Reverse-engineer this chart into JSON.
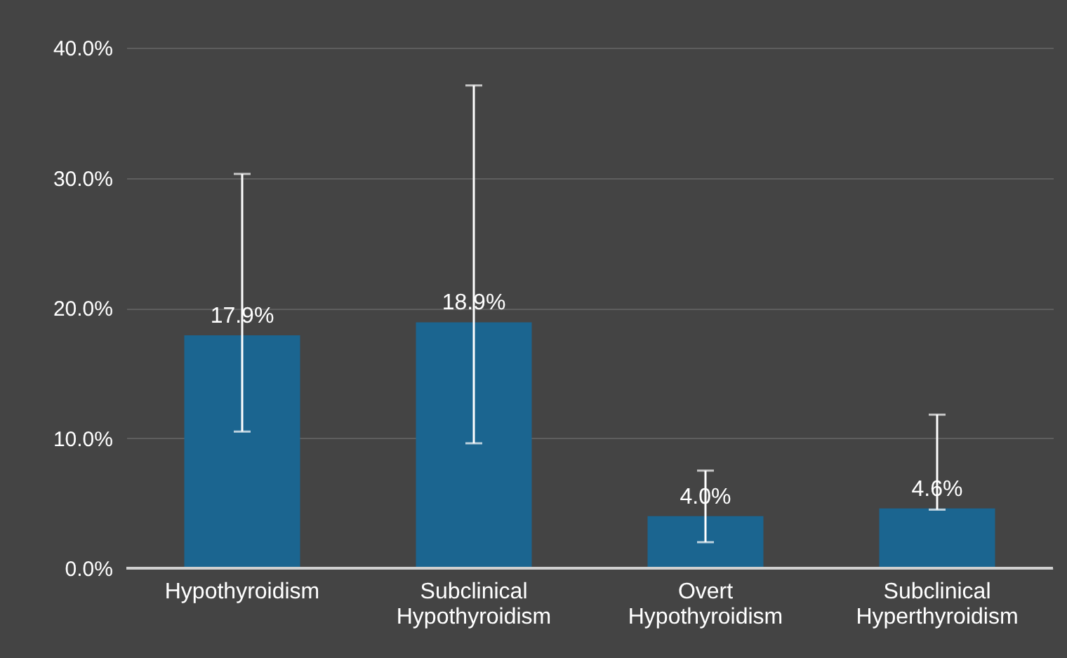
{
  "chart_data": {
    "type": "bar",
    "categories": [
      "Hypothyroidism",
      "Subclinical Hypothyroidism",
      "Overt Hypothyroidism",
      "Subclinical Hyperthyroidism"
    ],
    "values": [
      17.9,
      18.9,
      4.0,
      4.6
    ],
    "value_labels": [
      "17.9%",
      "18.9%",
      "4.0%",
      "4.6%"
    ],
    "errors": [
      [
        10.5,
        30.3
      ],
      [
        9.6,
        37.1
      ],
      [
        2.0,
        7.5
      ],
      [
        4.5,
        11.8
      ]
    ],
    "color": "#1b6590",
    "ylim": [
      0,
      40
    ],
    "yticks": [
      {
        "value": 0,
        "label": "0.0%"
      },
      {
        "value": 10,
        "label": "10.0%"
      },
      {
        "value": 20,
        "label": "20.0%"
      },
      {
        "value": 30,
        "label": "30.0%"
      },
      {
        "value": 40,
        "label": "40.0%"
      }
    ],
    "grid": true
  }
}
